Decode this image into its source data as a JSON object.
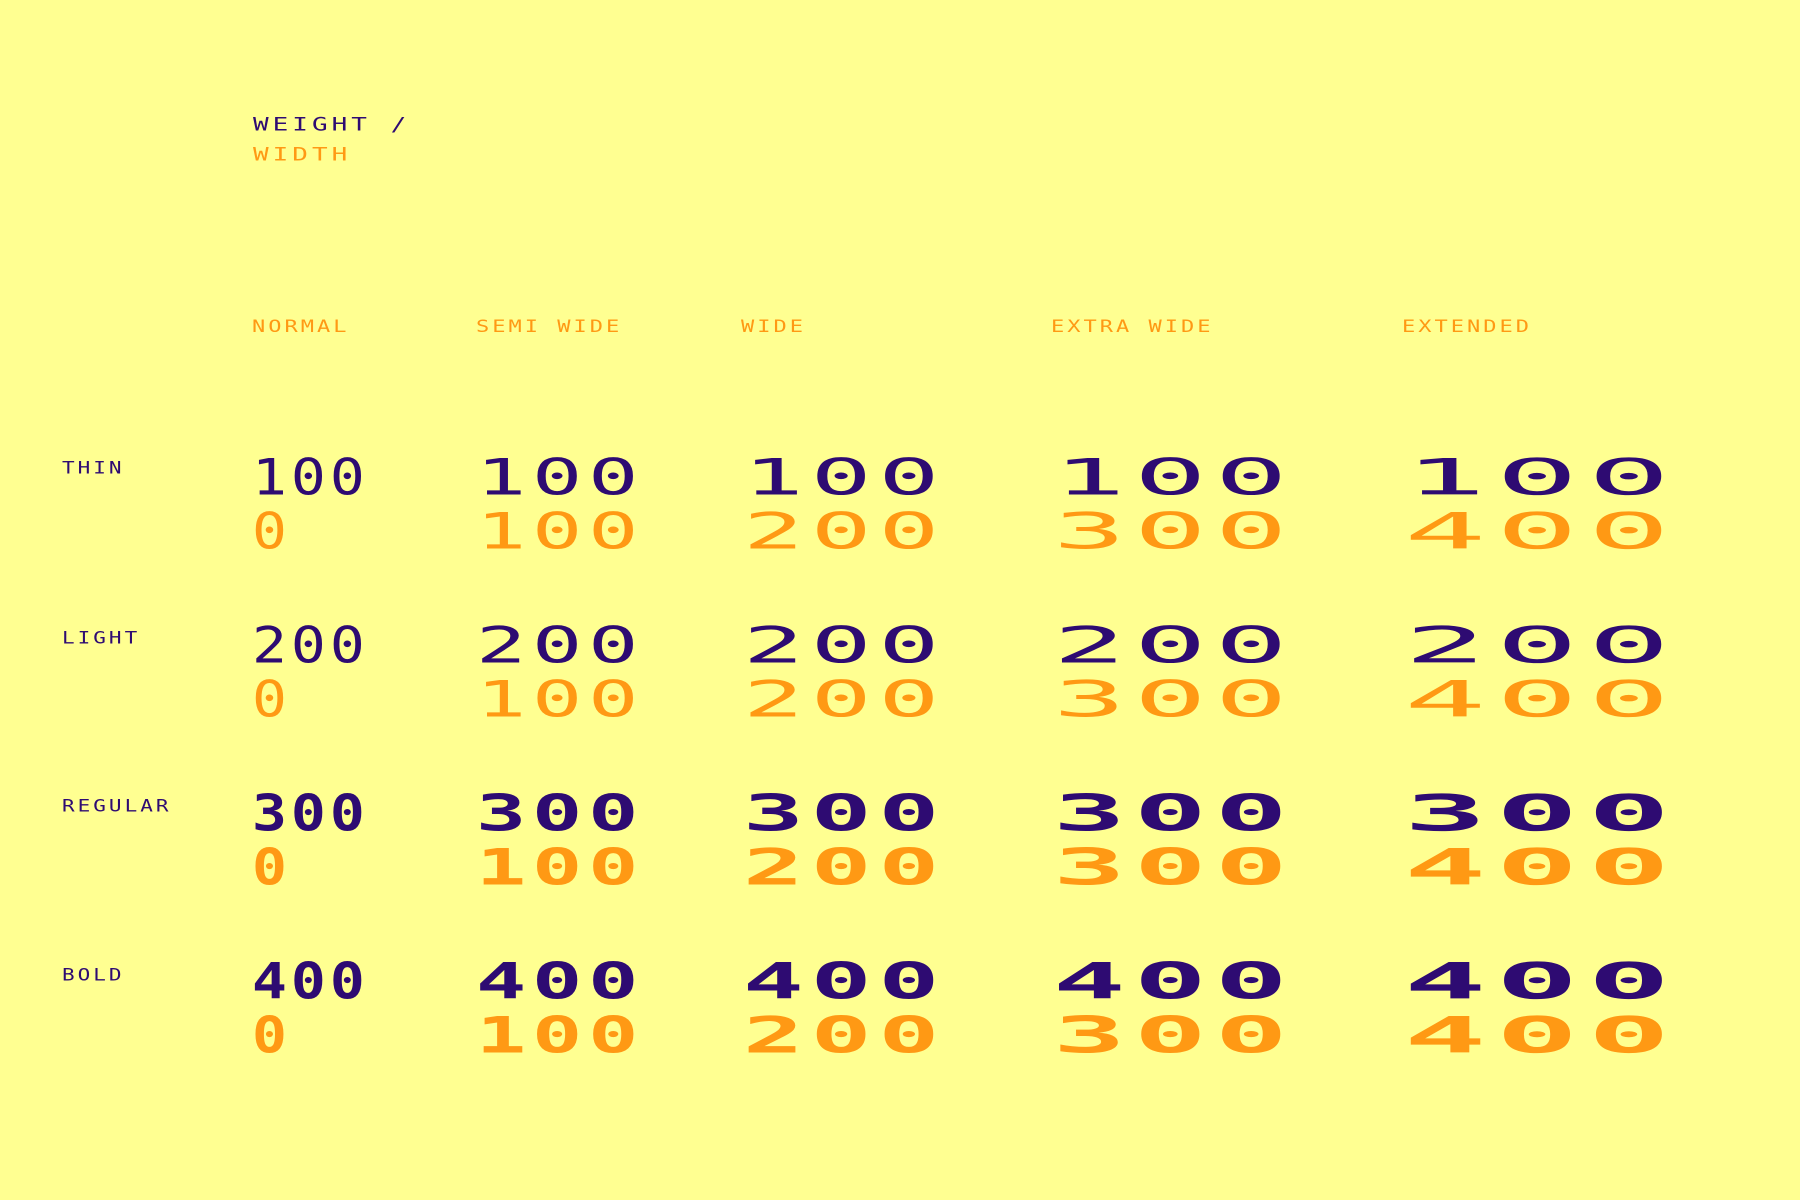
{
  "colors": {
    "background": "#FFFF91",
    "weight": "#2E0B72",
    "width": "#FF9914"
  },
  "title": {
    "weight": "WEIGHT /",
    "width": "WIDTH"
  },
  "columns": [
    "NORMAL",
    "SEMI WIDE",
    "WIDE",
    "EXTRA WIDE",
    "EXTENDED"
  ],
  "rows": [
    "THIN",
    "LIGHT",
    "REGULAR",
    "BOLD"
  ],
  "grid": {
    "weights": [
      "100",
      "200",
      "300",
      "400"
    ],
    "widths": [
      "0",
      "100",
      "200",
      "300",
      "400"
    ]
  }
}
